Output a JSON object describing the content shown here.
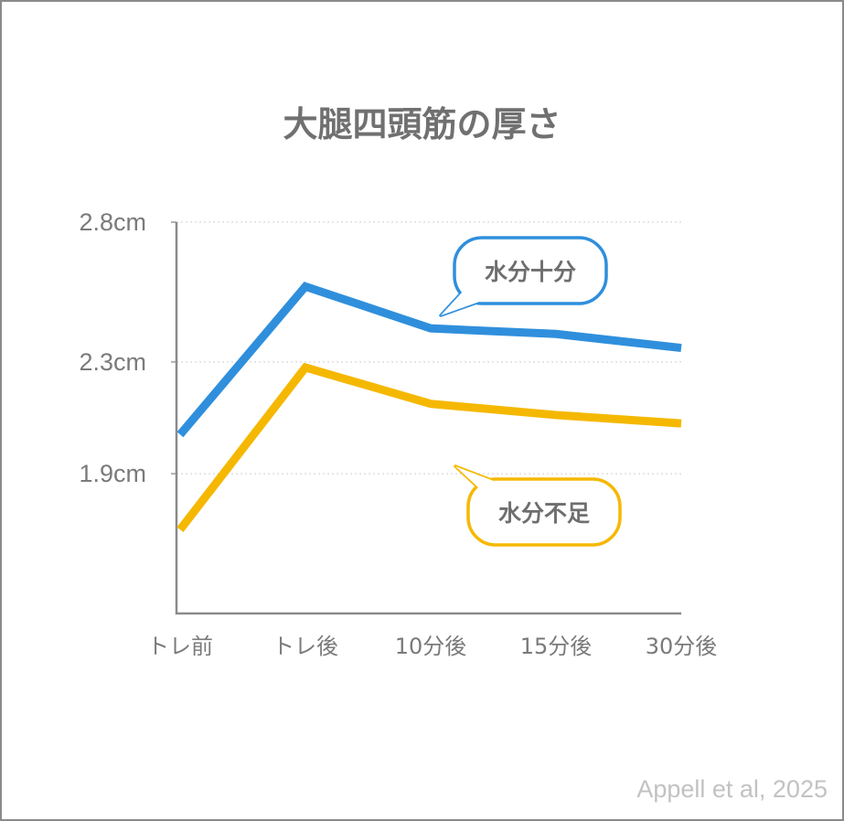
{
  "chart_data": {
    "type": "line",
    "title": "大腿四頭筋の厚さ",
    "categories": [
      "トレ前",
      "トレ後",
      "10分後",
      "15分後",
      "30分後"
    ],
    "y_ticks": [
      "2.8cm",
      "2.3cm",
      "1.9cm"
    ],
    "ylim": [
      1.4,
      2.8
    ],
    "series": [
      {
        "name": "水分十分",
        "color": "#2f8fdc",
        "values": [
          2.04,
          2.57,
          2.42,
          2.4,
          2.35
        ]
      },
      {
        "name": "水分不足",
        "color": "#f5b800",
        "values": [
          1.7,
          2.28,
          2.15,
          2.11,
          2.08
        ]
      }
    ],
    "grid": "dotted-horizontal",
    "source": "Appell et al, 2025"
  }
}
